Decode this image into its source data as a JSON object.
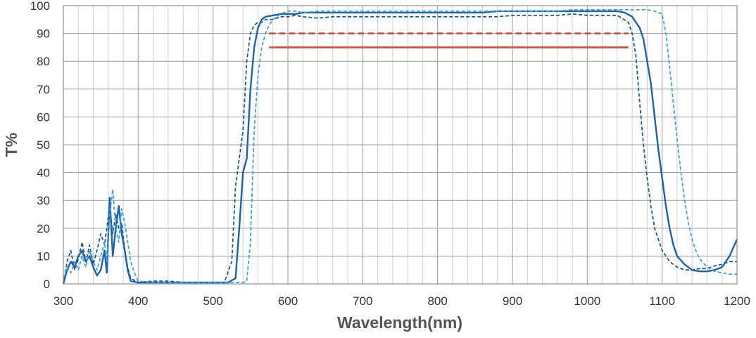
{
  "chart_data": {
    "type": "line",
    "xlabel": "Wavelength(nm)",
    "ylabel": "T%",
    "xlim": [
      300,
      1200
    ],
    "ylim": [
      0,
      100
    ],
    "x_ticks": [
      300,
      400,
      500,
      600,
      700,
      800,
      900,
      1000,
      1100,
      1200
    ],
    "y_ticks": [
      0,
      10,
      20,
      30,
      40,
      50,
      60,
      70,
      80,
      90,
      100
    ],
    "x_tick_labels": [
      "300",
      "400",
      "500",
      "600",
      "700",
      "800",
      "900",
      "1000",
      "1100",
      "1200"
    ],
    "y_tick_labels": [
      "0",
      "10",
      "20",
      "30",
      "40",
      "50",
      "60",
      "70",
      "80",
      "90",
      "100"
    ],
    "grid": true,
    "legend": "none",
    "series": [
      {
        "color": "#1f5a8c",
        "dash": "dashed",
        "x": [
          300,
          305,
          310,
          315,
          320,
          325,
          330,
          335,
          340,
          345,
          350,
          355,
          358,
          362,
          366,
          370,
          374,
          378,
          382,
          386,
          390,
          400,
          420,
          440,
          460,
          480,
          500,
          515,
          525,
          530,
          535,
          540,
          545,
          550,
          555,
          560,
          565,
          570,
          580,
          590,
          600,
          610,
          620,
          640,
          660,
          680,
          700,
          720,
          740,
          760,
          780,
          800,
          820,
          840,
          860,
          880,
          900,
          920,
          940,
          960,
          980,
          1000,
          1020,
          1040,
          1055,
          1060,
          1065,
          1070,
          1075,
          1080,
          1085,
          1090,
          1100,
          1110,
          1120,
          1130,
          1140,
          1150,
          1160,
          1170,
          1180,
          1190,
          1200
        ],
        "y": [
          0,
          8,
          12,
          5,
          9,
          15,
          8,
          14,
          7,
          12,
          18,
          14,
          20,
          28,
          18,
          25,
          20,
          22,
          12,
          6,
          2,
          0.5,
          1,
          1,
          0.5,
          0.5,
          0.5,
          0.5,
          8,
          35,
          45,
          55,
          80,
          90,
          93,
          94,
          94,
          95,
          95,
          96,
          96,
          96.5,
          96,
          95.5,
          96,
          96,
          96,
          96,
          96,
          96,
          96,
          96,
          96,
          96,
          96,
          96,
          96.5,
          96.5,
          96.5,
          96.5,
          97,
          96.5,
          96.5,
          96.5,
          94,
          90,
          82,
          65,
          50,
          38,
          28,
          20,
          12,
          8,
          6,
          5,
          5,
          5.5,
          5.5,
          6.5,
          7,
          8,
          8
        ]
      },
      {
        "color": "#1b63ad",
        "dash": "solid",
        "x": [
          300,
          305,
          310,
          315,
          320,
          325,
          330,
          335,
          340,
          345,
          350,
          355,
          358,
          362,
          366,
          370,
          374,
          378,
          382,
          386,
          390,
          400,
          420,
          440,
          460,
          480,
          500,
          520,
          530,
          535,
          540,
          545,
          550,
          555,
          560,
          565,
          570,
          580,
          590,
          600,
          610,
          620,
          640,
          660,
          680,
          700,
          720,
          740,
          760,
          780,
          800,
          820,
          840,
          860,
          880,
          900,
          920,
          940,
          960,
          980,
          1000,
          1020,
          1040,
          1050,
          1060,
          1065,
          1070,
          1075,
          1080,
          1085,
          1090,
          1095,
          1100,
          1105,
          1110,
          1115,
          1120,
          1130,
          1140,
          1150,
          1160,
          1170,
          1180,
          1190,
          1200
        ],
        "y": [
          0,
          5,
          8,
          6,
          10,
          12,
          8,
          10,
          6,
          3,
          5,
          12,
          4,
          31,
          10,
          20,
          28,
          18,
          12,
          5,
          1,
          0.5,
          0.5,
          0.5,
          0.5,
          0.5,
          0.5,
          0.5,
          2,
          20,
          40,
          45,
          70,
          85,
          92,
          95,
          96,
          96.5,
          97,
          97,
          97,
          97.5,
          97.5,
          97.5,
          97.5,
          97.5,
          97.5,
          97.5,
          97.5,
          97.5,
          97.5,
          97.5,
          97.5,
          97.5,
          98,
          98,
          98,
          98,
          98,
          98,
          98,
          98,
          98,
          97.5,
          96,
          94,
          92,
          88,
          80,
          72,
          60,
          48,
          38,
          28,
          20,
          14,
          10,
          7,
          5,
          4.5,
          4.5,
          5,
          6,
          10,
          16
        ]
      },
      {
        "color": "#3ba3e0",
        "dash": "dashed",
        "x": [
          300,
          305,
          310,
          315,
          320,
          325,
          330,
          335,
          340,
          345,
          350,
          355,
          358,
          362,
          366,
          370,
          374,
          378,
          382,
          386,
          390,
          395,
          400,
          420,
          440,
          460,
          480,
          500,
          520,
          535,
          540,
          545,
          550,
          555,
          560,
          565,
          570,
          575,
          580,
          590,
          600,
          610,
          620,
          640,
          660,
          680,
          700,
          720,
          740,
          760,
          780,
          800,
          820,
          840,
          860,
          880,
          900,
          920,
          940,
          960,
          980,
          1000,
          1020,
          1040,
          1060,
          1080,
          1090,
          1100,
          1105,
          1110,
          1115,
          1120,
          1125,
          1130,
          1135,
          1140,
          1145,
          1150,
          1160,
          1170,
          1180,
          1190,
          1200
        ],
        "y": [
          2,
          6,
          4,
          8,
          5,
          10,
          6,
          12,
          8,
          5,
          10,
          15,
          8,
          25,
          34,
          20,
          15,
          27,
          22,
          15,
          8,
          4,
          1,
          0.5,
          0.5,
          0.5,
          0.5,
          0.5,
          0.5,
          0.5,
          0.5,
          1,
          15,
          55,
          75,
          85,
          90,
          93,
          95,
          97,
          98,
          98,
          97.5,
          98,
          98,
          98,
          98,
          98,
          98,
          98,
          98,
          98,
          98,
          98,
          98,
          98,
          98,
          98,
          98,
          98,
          98.5,
          98.5,
          98.5,
          98.5,
          98.5,
          98.5,
          98,
          97,
          90,
          78,
          65,
          52,
          40,
          30,
          22,
          16,
          12,
          9,
          6,
          4.5,
          4,
          3.5,
          3.5
        ]
      },
      {
        "color": "#d04a3a",
        "dash": "dashed",
        "x": [
          575,
          1055
        ],
        "y": [
          90,
          90
        ]
      },
      {
        "color": "#d04a3a",
        "dash": "solid",
        "x": [
          575,
          1055
        ],
        "y": [
          85,
          85
        ]
      }
    ]
  }
}
